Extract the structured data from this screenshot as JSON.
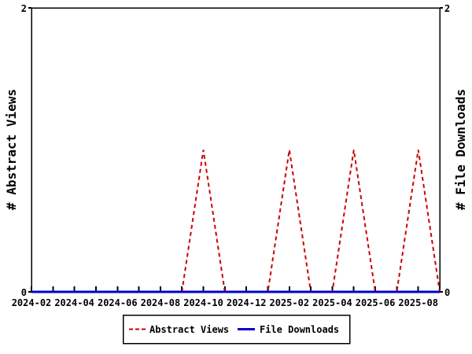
{
  "chart_data": {
    "type": "line",
    "title": "",
    "x_axis": {
      "months": [
        "2024-02",
        "2024-03",
        "2024-04",
        "2024-05",
        "2024-06",
        "2024-07",
        "2024-08",
        "2024-09",
        "2024-10",
        "2024-11",
        "2024-12",
        "2025-01",
        "2025-02",
        "2025-03",
        "2025-04",
        "2025-05",
        "2025-06",
        "2025-07",
        "2025-08",
        "2025-09"
      ],
      "labeled_ticks": [
        "2024-02",
        "2024-04",
        "2024-06",
        "2024-08",
        "2024-10",
        "2024-12",
        "2025-02",
        "2025-04",
        "2025-06",
        "2025-08"
      ]
    },
    "y_axis_left": {
      "label": "# Abstract Views",
      "min": 0,
      "max": 2,
      "tick_values": [
        0,
        2
      ]
    },
    "y_axis_right": {
      "label": "# File Downloads",
      "min": 0,
      "max": 2,
      "tick_values": [
        0,
        2
      ]
    },
    "series": [
      {
        "name": "Abstract Views",
        "axis": "left",
        "color": "#cc0000",
        "line_style": "dashed",
        "points": [
          [
            "2024-09",
            0
          ],
          [
            "2024-10",
            1
          ],
          [
            "2024-11",
            0
          ],
          [
            "2024-12",
            0
          ],
          [
            "2025-01",
            0
          ],
          [
            "2025-02",
            1
          ],
          [
            "2025-03",
            0
          ],
          [
            "2025-04",
            0
          ],
          [
            "2025-05",
            1
          ],
          [
            "2025-06",
            0
          ],
          [
            "2025-07",
            0
          ],
          [
            "2025-08",
            1
          ],
          [
            "2025-09",
            0
          ]
        ]
      },
      {
        "name": "File Downloads",
        "axis": "right",
        "color": "#0000cc",
        "line_style": "solid",
        "points": [
          [
            "2024-02",
            0
          ],
          [
            "2024-03",
            0
          ],
          [
            "2024-04",
            0
          ],
          [
            "2024-05",
            0
          ],
          [
            "2024-06",
            0
          ],
          [
            "2024-07",
            0
          ],
          [
            "2024-08",
            0
          ],
          [
            "2024-09",
            0
          ],
          [
            "2024-10",
            0
          ],
          [
            "2024-11",
            0
          ],
          [
            "2024-12",
            0
          ],
          [
            "2025-01",
            0
          ],
          [
            "2025-02",
            0
          ],
          [
            "2025-03",
            0
          ],
          [
            "2025-04",
            0
          ],
          [
            "2025-05",
            0
          ],
          [
            "2025-06",
            0
          ],
          [
            "2025-07",
            0
          ],
          [
            "2025-08",
            0
          ],
          [
            "2025-09",
            0
          ]
        ]
      }
    ],
    "legend": {
      "position": "bottom-center",
      "entries": [
        {
          "label": "Abstract Views",
          "color": "#cc0000",
          "style": "dashed"
        },
        {
          "label": "File Downloads",
          "color": "#0000cc",
          "style": "solid"
        }
      ]
    },
    "colors": {
      "background": "#ffffff",
      "axis": "#000000",
      "text": "#000000"
    }
  }
}
